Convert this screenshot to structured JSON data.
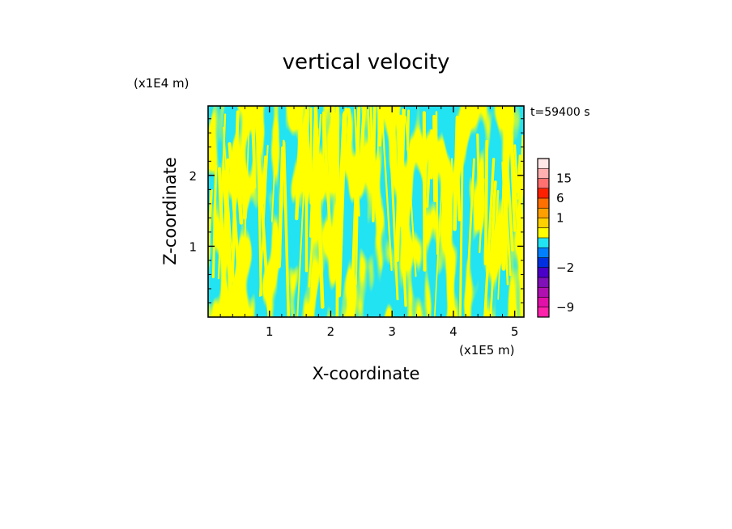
{
  "chart_data": {
    "type": "heatmap",
    "title": "vertical velocity",
    "xlabel": "X-coordinate",
    "ylabel": "Z-coordinate",
    "x_unit": "(x1E5 m)",
    "y_unit": "(x1E4 m)",
    "time_label": "t=59400 s",
    "xlim": [
      0,
      5.15
    ],
    "ylim": [
      0,
      2.98
    ],
    "x_ticks": [
      1,
      2,
      3,
      4,
      5
    ],
    "x_tick_labels": [
      "1",
      "2",
      "3",
      "4",
      "5"
    ],
    "y_ticks": [
      1,
      2
    ],
    "y_tick_labels": [
      "1",
      "2"
    ],
    "field_colors": {
      "negative": "#22e3f2",
      "positive": "#ffff00"
    },
    "colorbar": {
      "levels": [
        -12,
        -9,
        -6,
        -4,
        -3,
        -2,
        -1,
        -0.5,
        0,
        0.5,
        1,
        3,
        6,
        10,
        15,
        20,
        30
      ],
      "colors": [
        "#ff22aa",
        "#e010a8",
        "#b010b0",
        "#8010b8",
        "#4a00c8",
        "#0030e0",
        "#0080ff",
        "#22e3f2",
        "#ffff00",
        "#ffd000",
        "#ffa000",
        "#ff7000",
        "#ff2000",
        "#ff7070",
        "#ffb0b0",
        "#ffe8e8"
      ],
      "tick_values": [
        15,
        6,
        1,
        -2,
        -9
      ],
      "tick_labels": [
        "15",
        "6",
        "1",
        "−2",
        "−9"
      ]
    }
  }
}
